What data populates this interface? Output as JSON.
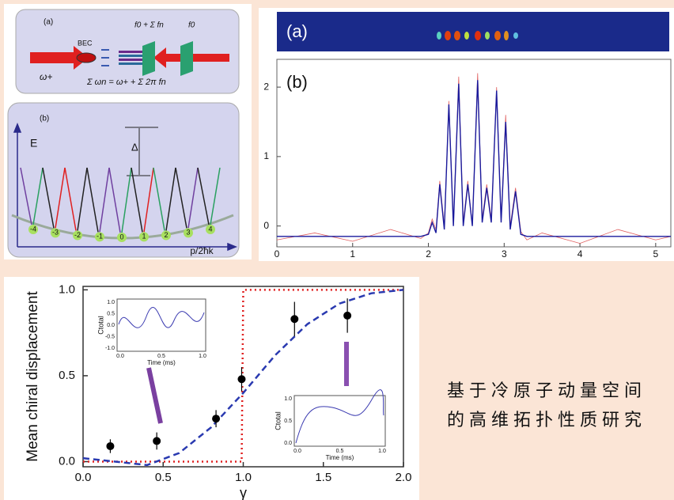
{
  "diagram": {
    "a": {
      "label": "(a)",
      "bec": "BEC",
      "omega": "ω+",
      "top_formula": "f0 + Σ fn",
      "f0": "f0",
      "bottom_formula": "Σ ωn = ω+ + Σ 2π fn"
    },
    "b": {
      "label": "(b)",
      "energy": "E",
      "delta": "Δ",
      "momentum": "p/2ħk",
      "nodes": [
        "-4",
        "-3",
        "-2",
        "-1",
        "0",
        "1",
        "2",
        "3",
        "4"
      ]
    }
  },
  "chart_data": [
    {
      "type": "line",
      "annotations": [
        "(a)",
        "(b)"
      ],
      "x": [
        0,
        0.5,
        1,
        1.5,
        1.9,
        2.0,
        2.05,
        2.1,
        2.15,
        2.21,
        2.27,
        2.33,
        2.4,
        2.46,
        2.52,
        2.58,
        2.65,
        2.71,
        2.77,
        2.83,
        2.9,
        2.96,
        3.02,
        3.08,
        3.15,
        3.22,
        3.3,
        3.5,
        4,
        4.5,
        5,
        5.2
      ],
      "series": [
        {
          "color": "#e06060",
          "values": [
            -0.2,
            -0.1,
            -0.22,
            -0.05,
            -0.18,
            -0.1,
            0.1,
            -0.05,
            0.65,
            0.0,
            1.8,
            0.05,
            2.15,
            0.05,
            0.65,
            0.02,
            2.2,
            0.1,
            0.6,
            0.1,
            2.0,
            0.1,
            1.6,
            0.0,
            0.55,
            -0.08,
            -0.2,
            -0.1,
            -0.25,
            -0.05,
            -0.2,
            -0.15
          ]
        },
        {
          "color": "#1a1a9c",
          "values": [
            -0.15,
            -0.15,
            -0.15,
            -0.15,
            -0.15,
            -0.12,
            0.05,
            -0.1,
            0.6,
            -0.05,
            1.75,
            0.0,
            2.05,
            0.0,
            0.6,
            0.0,
            2.1,
            0.05,
            0.55,
            0.05,
            1.95,
            0.05,
            1.5,
            -0.05,
            0.5,
            -0.12,
            -0.15,
            -0.15,
            -0.15,
            -0.15,
            -0.15,
            -0.15
          ]
        }
      ],
      "xlim": [
        0,
        5.2
      ],
      "ylim": [
        -0.3,
        2.4
      ],
      "xticks": [
        0,
        1,
        2,
        3,
        4,
        5
      ],
      "yticks": [
        0,
        1,
        2
      ]
    },
    {
      "type": "scatter",
      "ylabel": "Mean chiral displacement",
      "xlabel": "γ",
      "points": {
        "color": "#000000",
        "x": [
          0.17,
          0.46,
          0.83,
          0.99,
          1.32,
          1.65
        ],
        "values": [
          0.09,
          0.12,
          0.25,
          0.48,
          0.83,
          0.85
        ],
        "errors": [
          0.04,
          0.05,
          0.05,
          0.07,
          0.1,
          0.1
        ]
      },
      "lines": [
        {
          "color": "#e02020",
          "style": "dotted",
          "x": [
            0,
            0.99,
            1.0,
            2.0
          ],
          "values": [
            0,
            0,
            1,
            1
          ]
        },
        {
          "color": "#2a3ab0",
          "style": "dashed",
          "x": [
            0,
            0.2,
            0.4,
            0.6,
            0.8,
            1.0,
            1.2,
            1.4,
            1.6,
            1.8,
            2.0
          ],
          "values": [
            0.02,
            0,
            -0.02,
            0.05,
            0.2,
            0.4,
            0.62,
            0.8,
            0.92,
            0.98,
            1.0
          ]
        }
      ],
      "xlim": [
        0,
        2
      ],
      "ylim": [
        -0.03,
        1.02
      ],
      "xticks": [
        {
          "value": 0,
          "label": "0.0"
        },
        {
          "value": 0.5,
          "label": "0.5"
        },
        {
          "value": 1,
          "label": "1.0"
        },
        {
          "value": 1.5,
          "label": "1.5"
        },
        {
          "value": 2,
          "label": "2.0"
        }
      ],
      "yticks": [
        {
          "value": 0,
          "label": "0.0"
        },
        {
          "value": 0.5,
          "label": "0.5"
        },
        {
          "value": 1,
          "label": "1.0"
        }
      ],
      "insets": [
        {
          "ylabel": "Ctotal",
          "xlabel": "Time (ms)",
          "xticks": [
            "0.0",
            "0.5",
            "1.0"
          ],
          "yticks": [
            "1.0",
            "0.5",
            "0.0",
            "-0.5",
            "-1.0"
          ]
        },
        {
          "ylabel": "Ctotal",
          "xlabel": "Time (ms)",
          "xticks": [
            "0.0",
            "0.5",
            "1.0"
          ],
          "yticks": [
            "1.0",
            "0.5",
            "0.0"
          ]
        }
      ]
    }
  ],
  "caption": [
    "基于冷原子动量空间",
    "的高维拓扑性质研究"
  ]
}
